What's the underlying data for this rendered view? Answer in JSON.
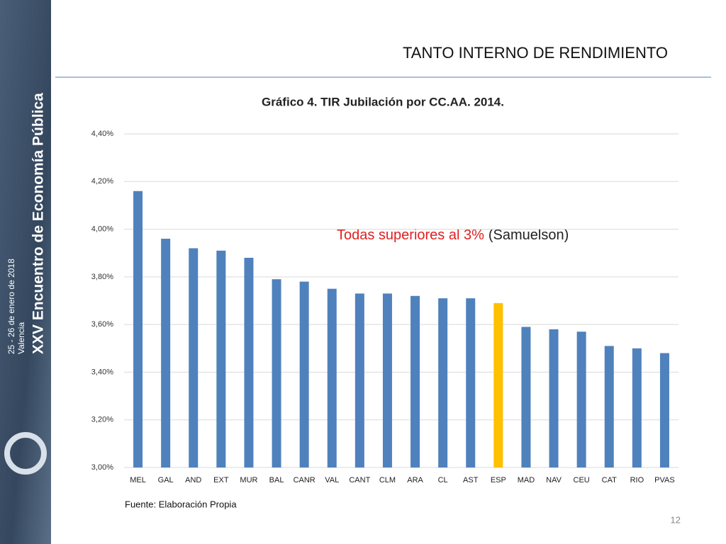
{
  "slide": {
    "title": "TANTO INTERNO DE RENDIMIENTO",
    "source": "Fuente: Elaboración Propia",
    "page_number": "12",
    "sidebar": {
      "event": "XXV Encuentro de Economía Pública",
      "dates": "25 - 26 de enero de 2018",
      "city": "Valencia"
    }
  },
  "chart_data": {
    "type": "bar",
    "title": "Gráfico 4. TIR Jubilación por CC.AA. 2014.",
    "annotations": [
      "Todas superiores al 3%",
      "(Samuelson)"
    ],
    "categories": [
      "MEL",
      "GAL",
      "AND",
      "EXT",
      "MUR",
      "BAL",
      "CANR",
      "VAL",
      "CANT",
      "CLM",
      "ARA",
      "CL",
      "AST",
      "ESP",
      "MAD",
      "NAV",
      "CEU",
      "CAT",
      "RIO",
      "PVAS"
    ],
    "values": [
      4.16,
      3.96,
      3.92,
      3.91,
      3.88,
      3.79,
      3.78,
      3.75,
      3.73,
      3.73,
      3.72,
      3.71,
      3.71,
      3.69,
      3.59,
      3.58,
      3.57,
      3.51,
      3.5,
      3.48
    ],
    "colors": [
      "#4f81bd",
      "#4f81bd",
      "#4f81bd",
      "#4f81bd",
      "#4f81bd",
      "#4f81bd",
      "#4f81bd",
      "#4f81bd",
      "#4f81bd",
      "#4f81bd",
      "#4f81bd",
      "#4f81bd",
      "#4f81bd",
      "#ffc000",
      "#4f81bd",
      "#4f81bd",
      "#4f81bd",
      "#4f81bd",
      "#4f81bd",
      "#4f81bd"
    ],
    "ylim": [
      3.0,
      4.4
    ],
    "yticks": [
      {
        "value": 3.0,
        "label": "3,00%"
      },
      {
        "value": 3.2,
        "label": "3,20%"
      },
      {
        "value": 3.4,
        "label": "3,40%"
      },
      {
        "value": 3.6,
        "label": "3,60%"
      },
      {
        "value": 3.8,
        "label": "3,80%"
      },
      {
        "value": 4.0,
        "label": "4,00%"
      },
      {
        "value": 4.2,
        "label": "4,20%"
      },
      {
        "value": 4.4,
        "label": "4,40%"
      }
    ],
    "grid": true
  }
}
